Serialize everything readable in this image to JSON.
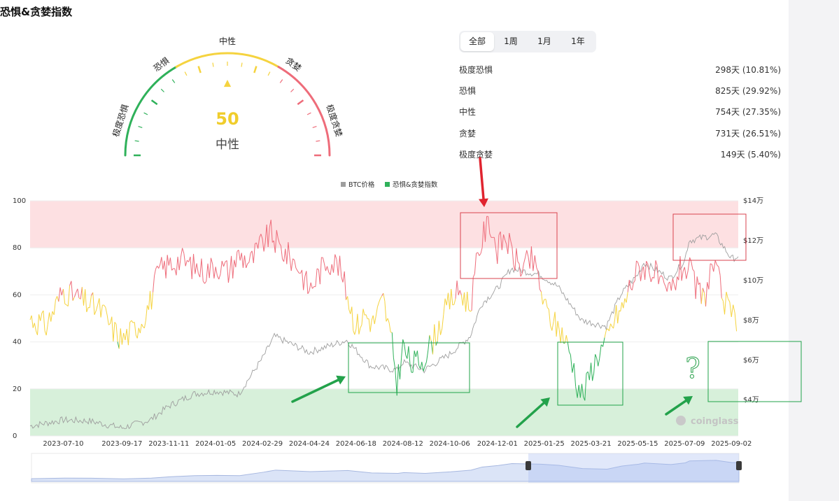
{
  "title": "恐惧&贪婪指数",
  "gauge": {
    "top_label": "中性",
    "value": 50,
    "value_label": "中性",
    "segments": [
      "极度恐惧",
      "恐惧",
      "中性",
      "贪婪",
      "极度贪婪"
    ],
    "colors": {
      "green": "#2fb15a",
      "yellow": "#f5d33f",
      "red": "#ee6c7a"
    }
  },
  "tabs": [
    {
      "label": "全部",
      "active": true
    },
    {
      "label": "1周",
      "active": false
    },
    {
      "label": "1月",
      "active": false
    },
    {
      "label": "1年",
      "active": false
    }
  ],
  "stats": [
    {
      "label": "极度恐惧",
      "value": "298天 (10.81%)"
    },
    {
      "label": "恐惧",
      "value": "825天 (29.92%)"
    },
    {
      "label": "中性",
      "value": "754天 (27.35%)"
    },
    {
      "label": "贪婪",
      "value": "731天 (26.51%)"
    },
    {
      "label": "极度贪婪",
      "value": "149天 (5.40%)"
    }
  ],
  "watermark": "coinglass",
  "annotation_mark": "?",
  "chart_data": {
    "type": "line",
    "legend": [
      "BTC价格",
      "恐惧&贪婪指数"
    ],
    "legend_colors": [
      "#9e9e9e",
      "#2fb15a"
    ],
    "x_ticks": [
      "2023-07-10",
      "2023-09-17",
      "2023-11-11",
      "2024-01-05",
      "2024-02-29",
      "2024-04-24",
      "2024-06-18",
      "2024-08-12",
      "2024-10-06",
      "2024-12-01",
      "2025-01-25",
      "2025-03-21",
      "2025-05-15",
      "2025-07-09",
      "2025-09-02"
    ],
    "y_left_ticks": [
      "100",
      "80",
      "60",
      "40",
      "20",
      "0"
    ],
    "y_left_range": [
      0,
      100
    ],
    "y_right_ticks": [
      "$14万",
      "$12万",
      "$10万",
      "$8万",
      "$6万",
      "$4万"
    ],
    "y_right_range": [
      2.2,
      14
    ],
    "bands": [
      {
        "from": 80,
        "to": 100,
        "color": "#fde0e2"
      },
      {
        "from": 0,
        "to": 20,
        "color": "#d7f0da"
      }
    ],
    "series": [
      {
        "name": "恐惧&贪婪指数",
        "x": [
          "2023-06-01",
          "2023-06-20",
          "2023-07-10",
          "2023-07-25",
          "2023-08-10",
          "2023-08-25",
          "2023-09-05",
          "2023-09-17",
          "2023-09-30",
          "2023-10-10",
          "2023-10-20",
          "2023-10-30",
          "2023-11-11",
          "2023-11-25",
          "2023-12-10",
          "2023-12-25",
          "2024-01-05",
          "2024-01-20",
          "2024-02-01",
          "2024-02-15",
          "2024-02-29",
          "2024-03-10",
          "2024-03-20",
          "2024-04-01",
          "2024-04-12",
          "2024-04-24",
          "2024-05-05",
          "2024-05-15",
          "2024-05-28",
          "2024-06-08",
          "2024-06-18",
          "2024-06-28",
          "2024-07-08",
          "2024-07-20",
          "2024-08-01",
          "2024-08-05",
          "2024-08-12",
          "2024-08-22",
          "2024-09-05",
          "2024-09-18",
          "2024-10-06",
          "2024-10-18",
          "2024-10-30",
          "2024-11-08",
          "2024-11-15",
          "2024-11-22",
          "2024-12-01",
          "2024-12-10",
          "2024-12-20",
          "2024-12-30",
          "2025-01-10",
          "2025-01-18",
          "2025-01-25",
          "2025-02-05",
          "2025-02-15",
          "2025-02-25",
          "2025-03-05",
          "2025-03-12",
          "2025-03-21",
          "2025-03-31",
          "2025-04-08",
          "2025-04-18",
          "2025-04-28",
          "2025-05-05",
          "2025-05-15",
          "2025-05-25",
          "2025-06-05",
          "2025-06-15",
          "2025-06-25",
          "2025-07-02",
          "2025-07-09",
          "2025-07-15",
          "2025-07-22",
          "2025-08-01",
          "2025-08-10",
          "2025-08-18",
          "2025-08-25",
          "2025-09-02",
          "2025-09-10"
        ],
        "values": [
          50,
          47,
          62,
          59,
          56,
          53,
          46,
          41,
          45,
          49,
          57,
          70,
          73,
          75,
          72,
          70,
          73,
          70,
          77,
          74,
          82,
          86,
          80,
          76,
          72,
          62,
          69,
          75,
          73,
          60,
          46,
          52,
          48,
          58,
          35,
          22,
          38,
          30,
          33,
          42,
          57,
          62,
          55,
          76,
          86,
          91,
          79,
          85,
          76,
          71,
          75,
          68,
          55,
          48,
          44,
          35,
          22,
          17,
          28,
          36,
          40,
          50,
          55,
          63,
          71,
          72,
          69,
          60,
          63,
          70,
          72,
          70,
          63,
          58,
          73,
          66,
          57,
          51,
          48
        ]
      },
      {
        "name": "BTC价格",
        "unit": "万美元",
        "x": [
          "2023-06-01",
          "2023-07-10",
          "2023-08-10",
          "2023-09-17",
          "2023-10-20",
          "2023-11-11",
          "2023-12-10",
          "2024-01-05",
          "2024-02-01",
          "2024-02-29",
          "2024-03-14",
          "2024-04-24",
          "2024-06-07",
          "2024-06-18",
          "2024-07-05",
          "2024-08-05",
          "2024-08-12",
          "2024-09-06",
          "2024-10-06",
          "2024-10-30",
          "2024-11-12",
          "2024-12-01",
          "2024-12-17",
          "2025-01-20",
          "2025-02-10",
          "2025-03-10",
          "2025-04-08",
          "2025-04-25",
          "2025-05-15",
          "2025-05-22",
          "2025-06-22",
          "2025-07-09",
          "2025-07-14",
          "2025-08-14",
          "2025-09-02",
          "2025-09-10"
        ],
        "values": [
          2.7,
          3.0,
          2.95,
          2.6,
          3.0,
          3.7,
          4.3,
          4.45,
          4.3,
          6.1,
          7.2,
          6.4,
          7.0,
          6.5,
          5.7,
          5.5,
          5.9,
          5.5,
          6.3,
          7.2,
          8.8,
          9.6,
          10.6,
          10.3,
          9.7,
          8.0,
          7.7,
          9.3,
          10.3,
          10.9,
          10.1,
          11.0,
          12.0,
          12.3,
          11.1,
          11.2
        ]
      }
    ]
  }
}
